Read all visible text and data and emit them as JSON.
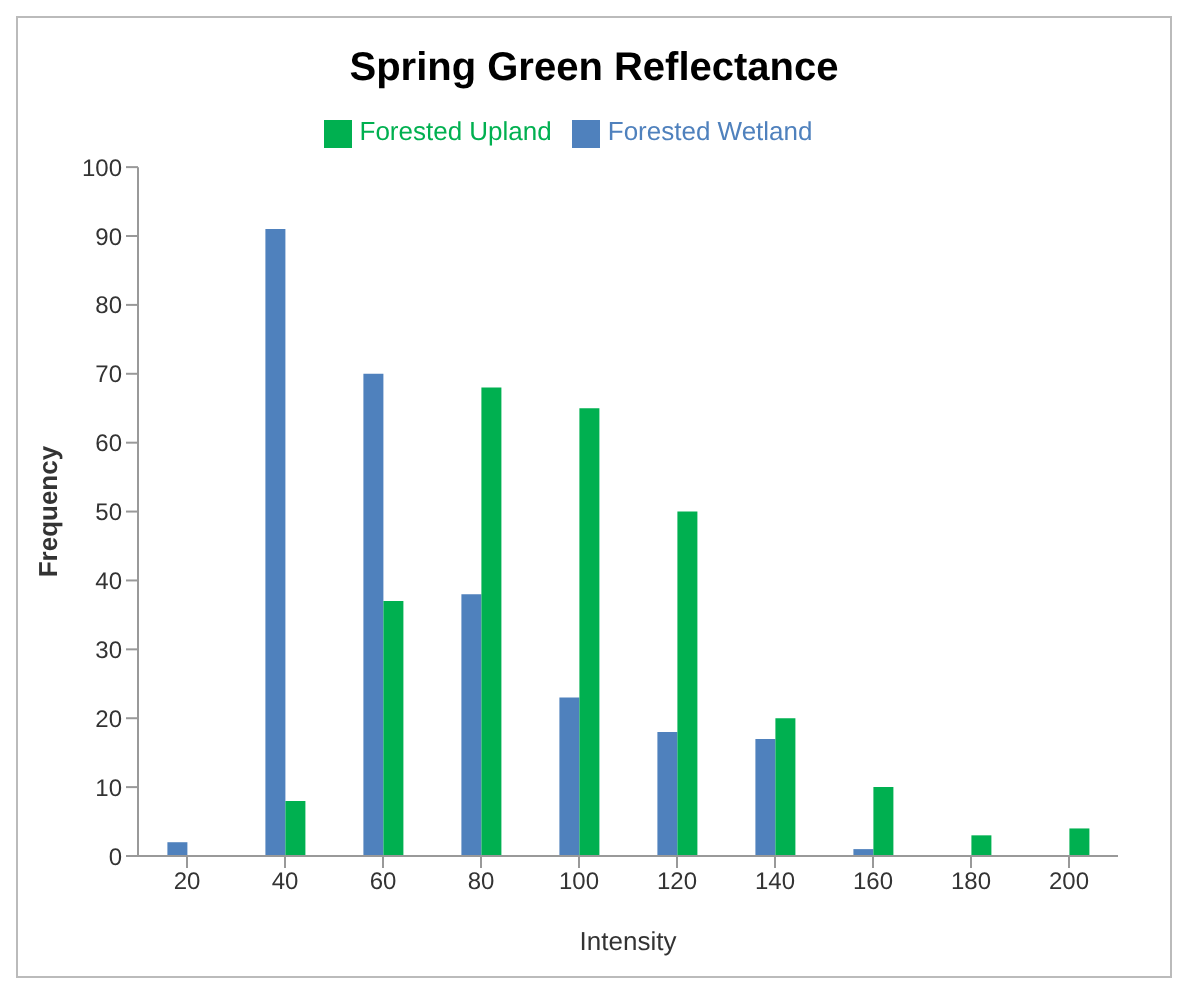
{
  "chart_data": {
    "type": "bar",
    "title": "Spring Green Reflectance",
    "xlabel": "Intensity",
    "ylabel": "Frequency",
    "categories": [
      "20",
      "40",
      "60",
      "80",
      "100",
      "120",
      "140",
      "160",
      "180",
      "200"
    ],
    "series": [
      {
        "name": "Forested Wetland",
        "color": "#4f81bd",
        "values": [
          2,
          91,
          70,
          38,
          23,
          18,
          17,
          1,
          0,
          0
        ]
      },
      {
        "name": "Forested Upland",
        "color": "#00b050",
        "values": [
          0,
          8,
          37,
          68,
          65,
          50,
          20,
          10,
          3,
          4
        ]
      }
    ],
    "ylim": [
      0,
      100
    ],
    "yticks": [
      0,
      10,
      20,
      30,
      40,
      50,
      60,
      70,
      80,
      90,
      100
    ],
    "grid": false,
    "legend": "top"
  }
}
